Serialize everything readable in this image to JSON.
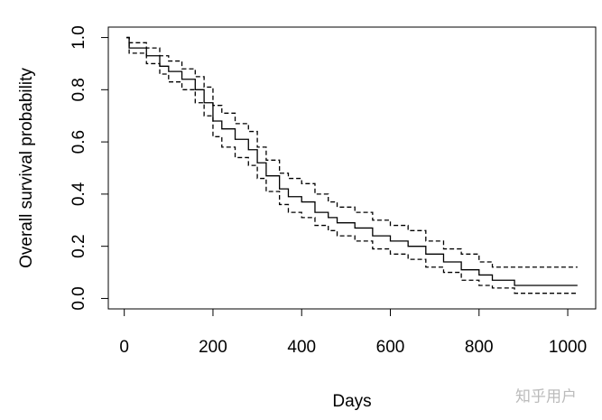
{
  "chart_data": {
    "type": "line",
    "step": "post",
    "xlabel": "Days",
    "ylabel": "Overall survival probability",
    "x": [
      5,
      11,
      50,
      80,
      100,
      130,
      160,
      180,
      200,
      220,
      250,
      280,
      300,
      320,
      350,
      370,
      400,
      430,
      460,
      480,
      520,
      560,
      600,
      640,
      680,
      720,
      760,
      800,
      830,
      880,
      1022
    ],
    "series": [
      {
        "color": "#000000",
        "linestyle": "solid",
        "values": [
          1.0,
          0.96,
          0.93,
          0.89,
          0.87,
          0.84,
          0.8,
          0.75,
          0.68,
          0.65,
          0.61,
          0.57,
          0.52,
          0.47,
          0.42,
          0.39,
          0.37,
          0.33,
          0.31,
          0.29,
          0.27,
          0.24,
          0.22,
          0.2,
          0.17,
          0.14,
          0.11,
          0.09,
          0.07,
          0.05,
          0.05
        ]
      },
      {
        "color": "#000000",
        "linestyle": "dashed",
        "values": [
          1.0,
          0.94,
          0.9,
          0.86,
          0.83,
          0.8,
          0.75,
          0.7,
          0.62,
          0.58,
          0.54,
          0.51,
          0.46,
          0.41,
          0.36,
          0.33,
          0.31,
          0.28,
          0.26,
          0.24,
          0.22,
          0.19,
          0.17,
          0.15,
          0.12,
          0.1,
          0.07,
          0.05,
          0.04,
          0.02,
          0.02
        ]
      },
      {
        "color": "#000000",
        "linestyle": "dashed",
        "values": [
          1.0,
          0.98,
          0.96,
          0.93,
          0.91,
          0.88,
          0.85,
          0.81,
          0.74,
          0.71,
          0.67,
          0.64,
          0.58,
          0.53,
          0.48,
          0.46,
          0.44,
          0.4,
          0.37,
          0.35,
          0.33,
          0.3,
          0.28,
          0.26,
          0.22,
          0.19,
          0.17,
          0.14,
          0.12,
          0.12,
          0.12
        ]
      }
    ],
    "xlim": [
      -36,
      1063
    ],
    "xticks": [
      0,
      200,
      400,
      600,
      800,
      1000
    ],
    "ylim": [
      -0.04,
      1.04
    ],
    "yticks": [
      {
        "value": 0,
        "label": "0.0"
      },
      {
        "value": 0.2,
        "label": "0.2"
      },
      {
        "value": 0.4,
        "label": "0.4"
      },
      {
        "value": 0.6,
        "label": "0.6"
      },
      {
        "value": 0.8,
        "label": "0.8"
      },
      {
        "value": 1,
        "label": "1.0"
      }
    ],
    "grid": false,
    "watermark": "知乎用户"
  }
}
